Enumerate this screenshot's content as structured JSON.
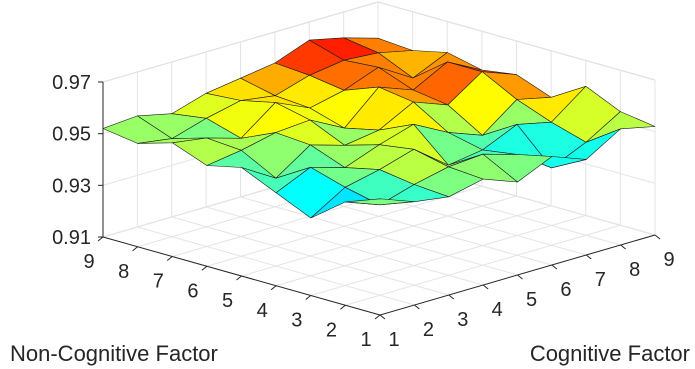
{
  "chart_data": {
    "type": "surface",
    "title": "",
    "x_axis": {
      "label": "Cognitive Factor",
      "ticks": [
        "1",
        "2",
        "3",
        "4",
        "5",
        "6",
        "7",
        "8",
        "9"
      ]
    },
    "y_axis": {
      "label": "Non-Cognitive Factor",
      "ticks": [
        "1",
        "2",
        "3",
        "4",
        "5",
        "6",
        "7",
        "8",
        "9"
      ]
    },
    "z_axis": {
      "label": "",
      "ticks": [
        "0.91",
        "0.93",
        "0.95",
        "0.97"
      ],
      "zlim": [
        0.91,
        0.97
      ]
    },
    "grid": true,
    "colormap": "jet",
    "z_values": [
      [
        0.955,
        0.95,
        0.948,
        0.951,
        0.946,
        0.952,
        0.947,
        0.955,
        0.952
      ],
      [
        0.95,
        0.945,
        0.949,
        0.952,
        0.953,
        0.949,
        0.94,
        0.946,
        0.954
      ],
      [
        0.94,
        0.948,
        0.951,
        0.955,
        0.945,
        0.947,
        0.953,
        0.95,
        0.96
      ],
      [
        0.946,
        0.952,
        0.948,
        0.953,
        0.957,
        0.95,
        0.945,
        0.955,
        0.952
      ],
      [
        0.952,
        0.944,
        0.953,
        0.949,
        0.951,
        0.958,
        0.953,
        0.962,
        0.957
      ],
      [
        0.949,
        0.951,
        0.954,
        0.955,
        0.948,
        0.96,
        0.955,
        0.962,
        0.955
      ],
      [
        0.954,
        0.952,
        0.948,
        0.958,
        0.952,
        0.955,
        0.96,
        0.952,
        0.958
      ],
      [
        0.95,
        0.948,
        0.952,
        0.955,
        0.953,
        0.957,
        0.959,
        0.958,
        0.955
      ],
      [
        0.952,
        0.953,
        0.95,
        0.954,
        0.956,
        0.958,
        0.963,
        0.96,
        0.956
      ]
    ],
    "z_values_note_rows": "rows = Non-Cognitive Factor 1..9, columns = Cognitive Factor 1..9"
  }
}
